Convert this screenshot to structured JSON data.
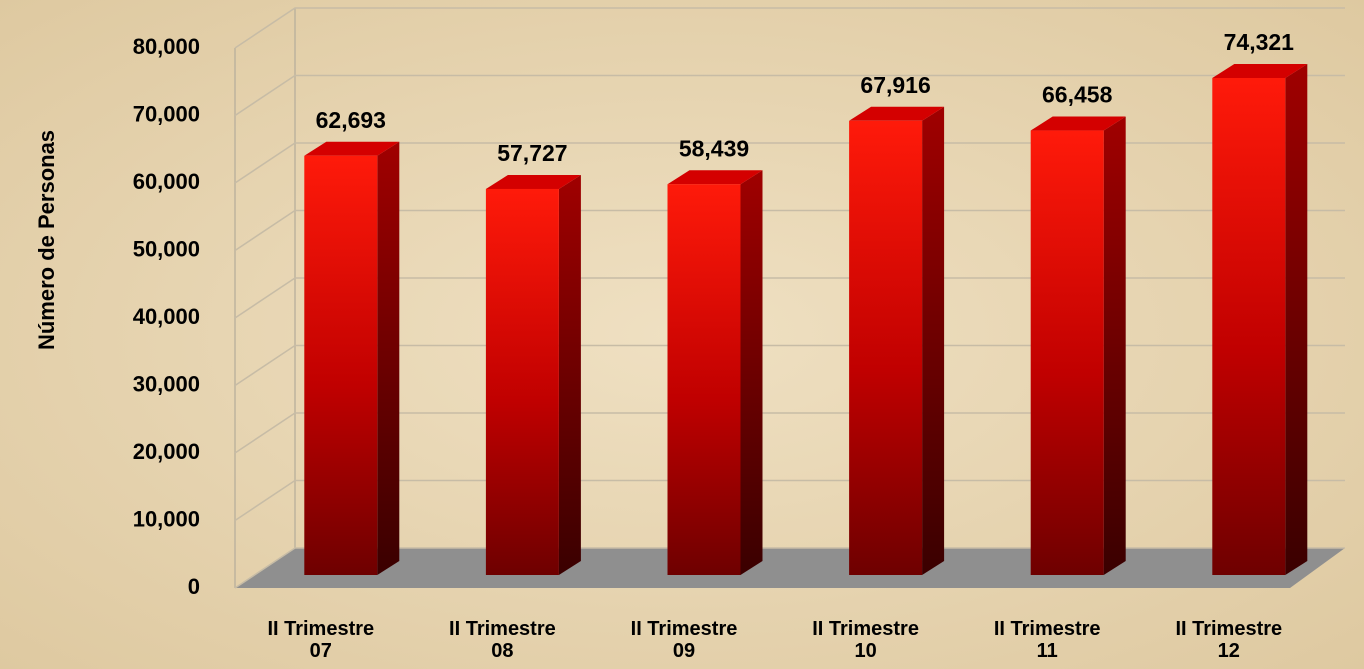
{
  "chart_data": {
    "type": "bar3d",
    "y_label": "Número de Personas",
    "categories": [
      "II Trimestre\n07",
      "II Trimestre\n08",
      "II Trimestre\n09",
      "II Trimestre\n10",
      "II Trimestre\n11",
      "II Trimestre\n12"
    ],
    "values": [
      62693,
      57727,
      58439,
      67916,
      66458,
      74321
    ],
    "value_labels": [
      "62,693",
      "57,727",
      "58,439",
      "67,916",
      "66,458",
      "74,321"
    ],
    "color": "#e00000",
    "ylim": [
      0,
      80000
    ],
    "yticks": [
      0,
      {
        "value": 10000,
        "label": "10,000"
      },
      {
        "value": 20000,
        "label": "20,000"
      },
      {
        "value": 30000,
        "label": "30,000"
      },
      {
        "value": 40000,
        "label": "40,000"
      },
      {
        "value": 50000,
        "label": "50,000"
      },
      {
        "value": 60000,
        "label": "60,000"
      },
      {
        "value": 70000,
        "label": "70,000"
      },
      {
        "value": 80000,
        "label": "80,000"
      }
    ],
    "grid": true
  }
}
